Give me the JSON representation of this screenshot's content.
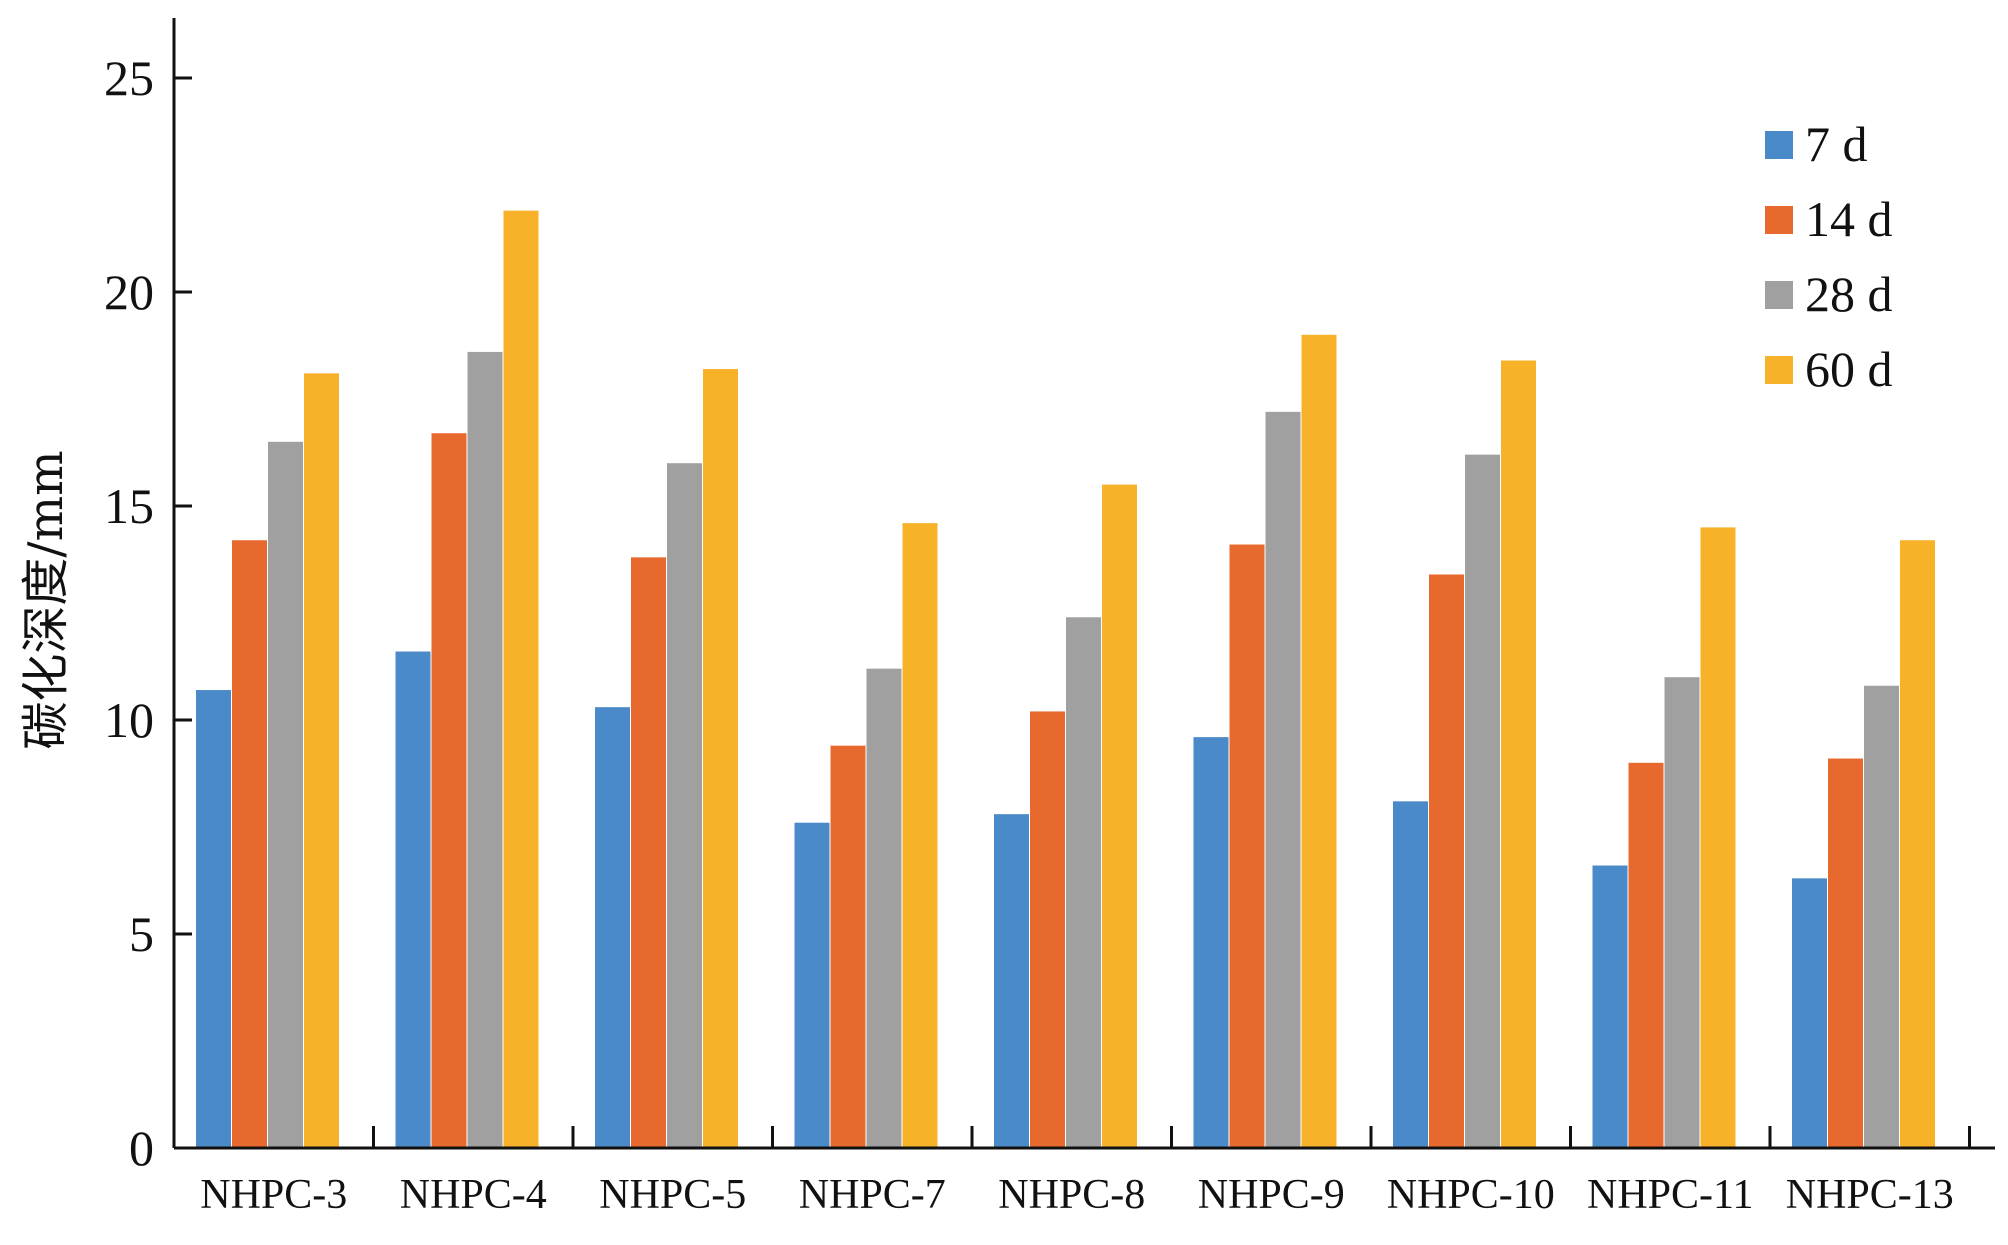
{
  "chart_data": {
    "type": "bar",
    "ylabel": "碳化深度/mm",
    "xlabel": "",
    "ylim": [
      0,
      25
    ],
    "yticks": [
      0,
      5,
      10,
      15,
      20,
      25
    ],
    "grid": false,
    "legend_position": "top-right",
    "categories": [
      "NHPC-3",
      "NHPC-4",
      "NHPC-5",
      "NHPC-7",
      "NHPC-8",
      "NHPC-9",
      "NHPC-10",
      "NHPC-11",
      "NHPC-13"
    ],
    "series": [
      {
        "name": "7 d",
        "color": "#4a8ac8",
        "values": [
          10.7,
          11.6,
          10.3,
          7.6,
          7.8,
          9.6,
          8.1,
          6.6,
          6.3
        ]
      },
      {
        "name": "14 d",
        "color": "#e8692e",
        "values": [
          14.2,
          16.7,
          13.8,
          9.4,
          10.2,
          14.1,
          13.4,
          9.0,
          9.1
        ]
      },
      {
        "name": "28 d",
        "color": "#a0a0a0",
        "values": [
          16.5,
          18.6,
          16.0,
          11.2,
          12.4,
          17.2,
          16.2,
          11.0,
          10.8
        ]
      },
      {
        "name": "60 d",
        "color": "#f7b22a",
        "values": [
          18.1,
          21.9,
          18.2,
          14.6,
          15.5,
          19.0,
          18.4,
          14.5,
          14.2
        ]
      }
    ]
  }
}
